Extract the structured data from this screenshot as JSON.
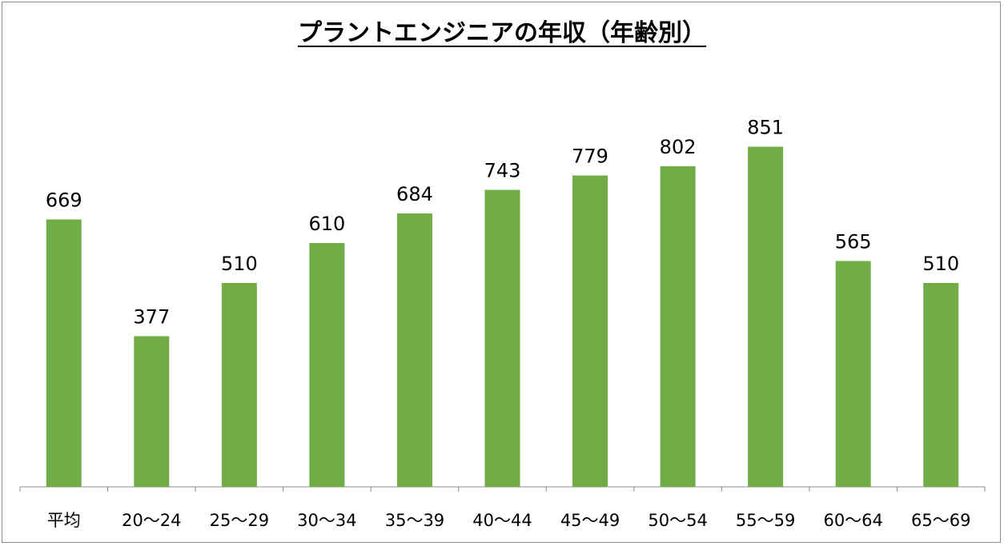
{
  "chart_data": {
    "type": "bar",
    "title": "プラントエンジニアの年収（年齢別）",
    "categories": [
      "平均",
      "20～24",
      "25～29",
      "30～34",
      "35～39",
      "40～44",
      "45～49",
      "50～54",
      "55～59",
      "60～64",
      "65～69"
    ],
    "values": [
      669,
      377,
      510,
      610,
      684,
      743,
      779,
      802,
      851,
      565,
      510
    ],
    "data_labels": [
      "669",
      "377",
      "510",
      "610",
      "684",
      "743",
      "779",
      "802",
      "851",
      "565",
      "510"
    ],
    "xlabel": "",
    "ylabel": "",
    "ylim": [
      0,
      1000
    ],
    "grid": false,
    "legend": "none",
    "bar_color": "#70ad47",
    "axis_color": "#8c8c8c"
  }
}
